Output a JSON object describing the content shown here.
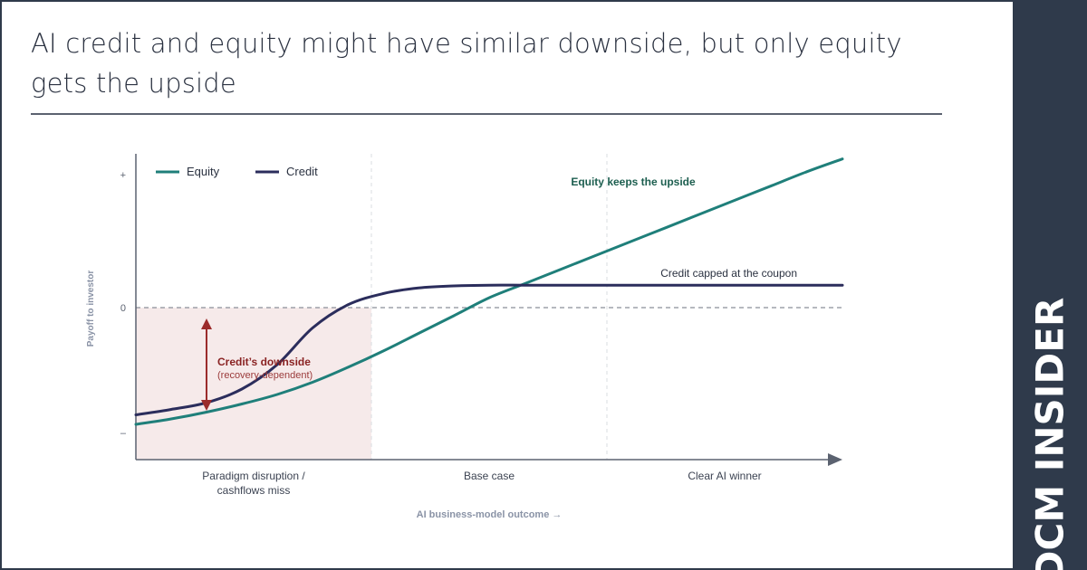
{
  "header": {
    "title": "AI credit and equity might have similar downside, but only equity gets the upside"
  },
  "brand": {
    "name": "DCM INSIDER"
  },
  "colors": {
    "equity": "#1f7f7a",
    "credit": "#2b2d5c",
    "downside": "#9b2b2b",
    "shade": "#f6eaea",
    "axis": "#5b6270",
    "annotation_upside": "#1c5e4f"
  },
  "chart_data": {
    "type": "line",
    "xlabel": "AI business-model outcome →",
    "ylabel": "Payoff to investor",
    "y_ticks": [
      "+",
      "0",
      "–"
    ],
    "x_ticks": [
      "Paradigm disruption / cashflows miss",
      "Base case",
      "Clear AI winner"
    ],
    "x_tick_lines": [
      [
        "Paradigm disruption /",
        "cashflows miss"
      ],
      [
        "Base case"
      ],
      [
        "Clear AI winner"
      ]
    ],
    "x": [
      0,
      0.05,
      0.1,
      0.15,
      0.2,
      0.25,
      0.3,
      0.35,
      0.4,
      0.45,
      0.5,
      0.55,
      0.6,
      0.65,
      0.7,
      0.75,
      0.8,
      0.85,
      0.9,
      0.95,
      1.0
    ],
    "ylim": [
      -1.0,
      1.0
    ],
    "legend_position": "top-left",
    "grid": false,
    "series": [
      {
        "name": "Equity",
        "values": [
          -0.86,
          -0.82,
          -0.77,
          -0.71,
          -0.64,
          -0.55,
          -0.44,
          -0.32,
          -0.19,
          -0.06,
          0.07,
          0.17,
          0.27,
          0.37,
          0.47,
          0.57,
          0.67,
          0.77,
          0.87,
          0.97,
          1.06
        ]
      },
      {
        "name": "Credit",
        "values": [
          -0.79,
          -0.75,
          -0.7,
          -0.6,
          -0.42,
          -0.15,
          0.02,
          0.1,
          0.14,
          0.155,
          0.16,
          0.16,
          0.16,
          0.16,
          0.16,
          0.16,
          0.16,
          0.16,
          0.16,
          0.16,
          0.16
        ]
      }
    ],
    "annotations": {
      "upside": "Equity keeps the upside",
      "credit_cap": "Credit capped at the coupon",
      "downside_title": "Credit’s downside",
      "downside_sub": "(recovery-dependent)"
    }
  }
}
